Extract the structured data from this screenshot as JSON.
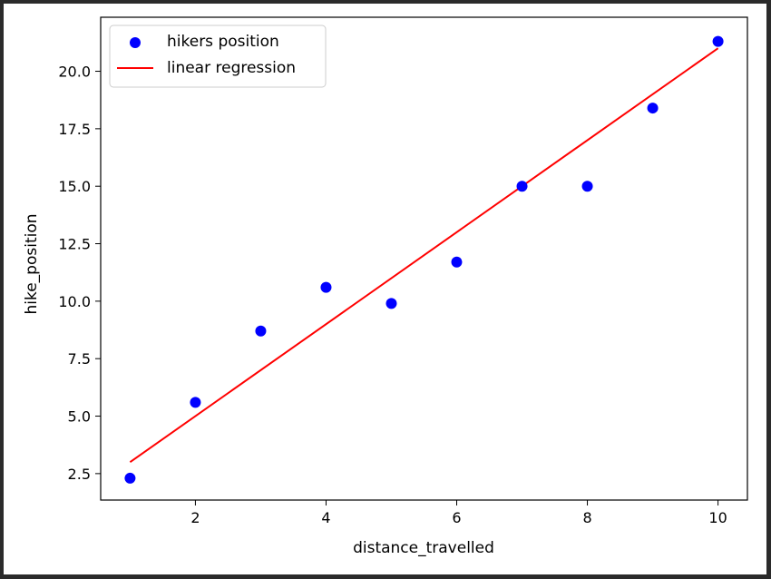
{
  "chart_data": {
    "type": "scatter",
    "title": "",
    "xlabel": "distance_travelled",
    "ylabel": "hike_position",
    "xlim": [
      0.55,
      10.45
    ],
    "ylim": [
      1.35,
      22.35
    ],
    "xticks": [
      2,
      4,
      6,
      8,
      10
    ],
    "xtick_labels": [
      "2",
      "4",
      "6",
      "8",
      "10"
    ],
    "yticks": [
      2.5,
      5.0,
      7.5,
      10.0,
      12.5,
      15.0,
      17.5,
      20.0
    ],
    "ytick_labels": [
      "2.5",
      "5.0",
      "7.5",
      "10.0",
      "12.5",
      "15.0",
      "17.5",
      "20.0"
    ],
    "grid": false,
    "legend_position": "upper-left",
    "series": [
      {
        "name": "hikers position",
        "kind": "scatter",
        "color": "#0000ff",
        "x": [
          1,
          2,
          3,
          4,
          5,
          6,
          7,
          8,
          9,
          10
        ],
        "y": [
          2.3,
          5.6,
          8.7,
          10.6,
          9.9,
          11.7,
          15.0,
          15.0,
          18.4,
          21.3
        ]
      },
      {
        "name": "linear regression",
        "kind": "line",
        "color": "#ff0000",
        "x": [
          1,
          10
        ],
        "y": [
          3.0,
          21.0
        ]
      }
    ]
  }
}
